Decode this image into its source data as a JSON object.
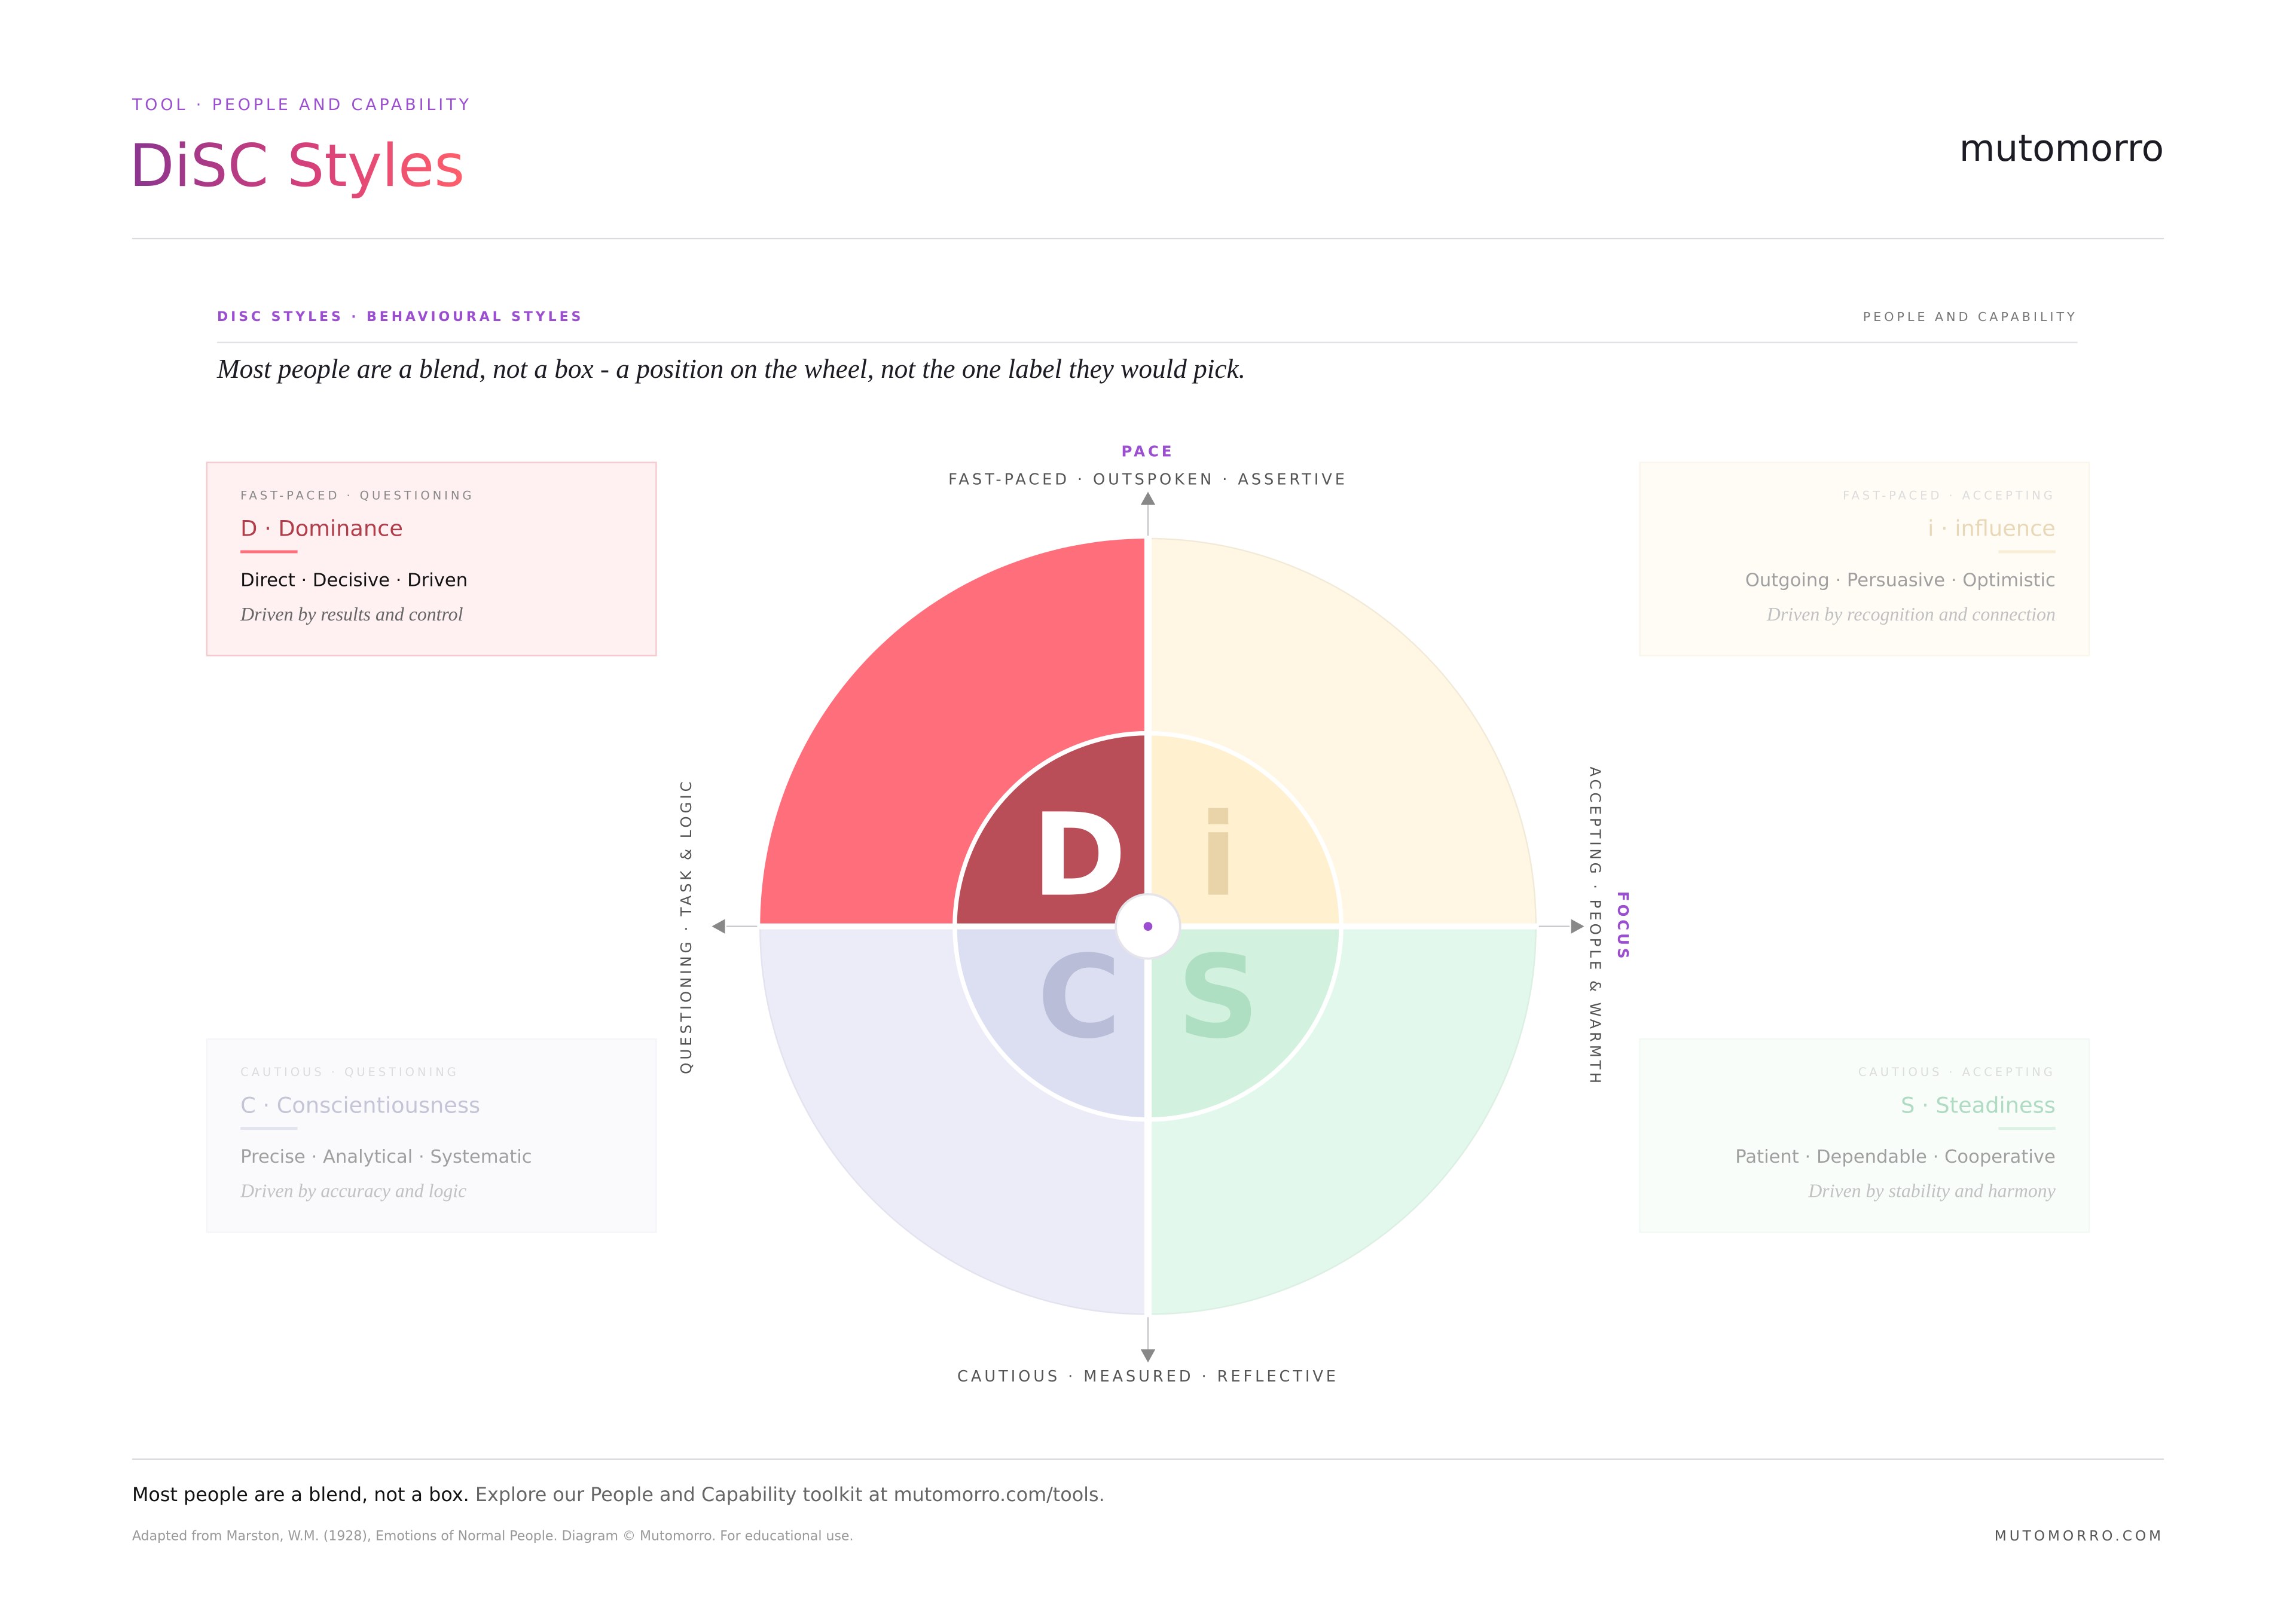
{
  "header": {
    "eyebrow": "TOOL · PEOPLE AND CAPABILITY",
    "title": "DiSC Styles",
    "brand": "mutomorro"
  },
  "section": {
    "eyebrow": "DISC STYLES · BEHAVIOURAL STYLES",
    "tag": "PEOPLE AND CAPABILITY",
    "quote": "Most people are a blend, not a box - a position on the wheel, not the one label they would pick."
  },
  "wheel": {
    "top_title": "PACE",
    "top_label": "FAST-PACED · OUTSPOKEN · ASSERTIVE",
    "bottom_label": "CAUTIOUS · MEASURED · REFLECTIVE",
    "left_label": "QUESTIONING · TASK & LOGIC",
    "right_label": "ACCEPTING · PEOPLE & WARMTH",
    "right_title": "FOCUS",
    "letters": [
      "D",
      "i",
      "C",
      "S"
    ]
  },
  "cards": [
    {
      "eyebrow": "FAST-PACED · QUESTIONING",
      "title": "D · Dominance",
      "traits": "Direct · Decisive · Driven",
      "motivation": "Driven by results and control"
    },
    {
      "eyebrow": "FAST-PACED · ACCEPTING",
      "title": "i · influence",
      "traits": "Outgoing · Persuasive · Optimistic",
      "motivation": "Driven by recognition and connection"
    },
    {
      "eyebrow": "CAUTIOUS · QUESTIONING",
      "title": "C · Conscientiousness",
      "traits": "Precise · Analytical · Systematic",
      "motivation": "Driven by accuracy and logic"
    },
    {
      "eyebrow": "CAUTIOUS · ACCEPTING",
      "title": "S · Steadiness",
      "traits": "Patient · Dependable · Cooperative",
      "motivation": "Driven by stability and harmony"
    }
  ],
  "footer": {
    "lead": "Most people are a blend, not a box.",
    "text": "Explore our People and Capability toolkit at mutomorro.com/tools.",
    "credit": "Adapted from Marston, W.M. (1928), Emotions of Normal People. Diagram © Mutomorro. For educational use.",
    "site": "MUTOMORRO.COM"
  }
}
